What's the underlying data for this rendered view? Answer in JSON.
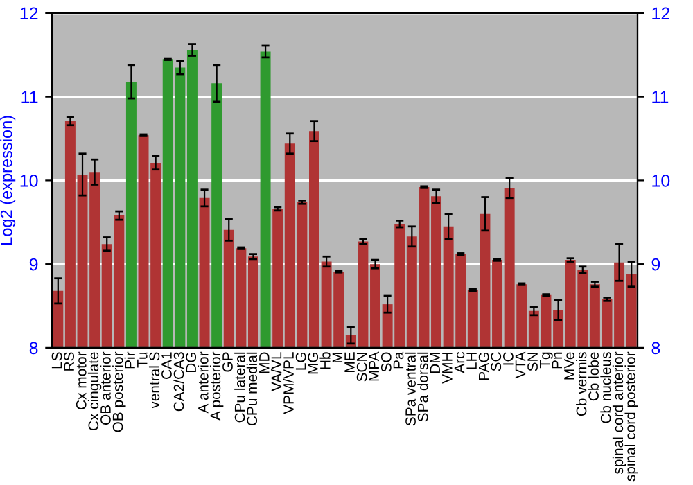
{
  "chart_data": {
    "type": "bar",
    "ylabel": "Log2 (expression)",
    "categories": [
      "LS",
      "RS",
      "Cx motor",
      "Cx cingulate",
      "OB anterior",
      "OB posterior",
      "Pir",
      "Tu",
      "ventral S",
      "CA1",
      "CA2/CA3",
      "DG",
      "A anterior",
      "A posterior",
      "GP",
      "CPu lateral",
      "CPu medial",
      "MD",
      "VA/VL",
      "VPM/VPL",
      "LG",
      "MG",
      "Hb",
      "M",
      "ME",
      "SCN",
      "MPA",
      "SO",
      "Pa",
      "SPa ventral",
      "SPa dorsal",
      "DM",
      "VMH",
      "Arc",
      "LH",
      "PAG",
      "SC",
      "IC",
      "VTA",
      "SN",
      "Tg",
      "Pn",
      "MVe",
      "Cb vermis",
      "Cb lobe",
      "Cb nucleus",
      "spinal cord anterior",
      "spinal cord posterior"
    ],
    "values": [
      8.68,
      10.71,
      10.07,
      10.1,
      9.24,
      9.58,
      11.18,
      10.54,
      10.21,
      11.45,
      11.35,
      11.56,
      9.79,
      11.16,
      9.41,
      9.19,
      9.09,
      11.54,
      9.66,
      10.44,
      9.74,
      10.59,
      9.03,
      8.91,
      8.15,
      9.27,
      9.0,
      8.52,
      9.48,
      9.33,
      9.92,
      9.81,
      9.45,
      9.12,
      8.69,
      9.6,
      9.05,
      9.91,
      8.76,
      8.44,
      8.63,
      8.45,
      9.05,
      8.93,
      8.76,
      8.58,
      9.02,
      8.88
    ],
    "errors": [
      0.15,
      0.05,
      0.25,
      0.15,
      0.08,
      0.05,
      0.2,
      0.01,
      0.08,
      0.01,
      0.08,
      0.07,
      0.1,
      0.22,
      0.13,
      0.01,
      0.03,
      0.07,
      0.02,
      0.12,
      0.02,
      0.12,
      0.06,
      0.01,
      0.1,
      0.03,
      0.05,
      0.1,
      0.04,
      0.12,
      0.01,
      0.08,
      0.15,
      0.01,
      0.01,
      0.2,
      0.01,
      0.12,
      0.01,
      0.05,
      0.01,
      0.12,
      0.02,
      0.04,
      0.03,
      0.02,
      0.22,
      0.15
    ],
    "colors": [
      "#b03434",
      "#b03434",
      "#b03434",
      "#b03434",
      "#b03434",
      "#b03434",
      "#2f9a2f",
      "#b03434",
      "#b03434",
      "#2f9a2f",
      "#2f9a2f",
      "#2f9a2f",
      "#b03434",
      "#2f9a2f",
      "#b03434",
      "#b03434",
      "#b03434",
      "#2f9a2f",
      "#b03434",
      "#b03434",
      "#b03434",
      "#b03434",
      "#b03434",
      "#b03434",
      "#b03434",
      "#b03434",
      "#b03434",
      "#b03434",
      "#b03434",
      "#b03434",
      "#b03434",
      "#b03434",
      "#b03434",
      "#b03434",
      "#b03434",
      "#b03434",
      "#b03434",
      "#b03434",
      "#b03434",
      "#b03434",
      "#b03434",
      "#b03434",
      "#b03434",
      "#b03434",
      "#b03434",
      "#b03434",
      "#b03434",
      "#b03434"
    ],
    "ylim": [
      8,
      12
    ],
    "yticks": [
      8,
      9,
      10,
      11,
      12
    ],
    "y2lim": [
      8,
      12
    ],
    "y2ticks": [
      8,
      9,
      10,
      11,
      12
    ],
    "grid": "y"
  }
}
